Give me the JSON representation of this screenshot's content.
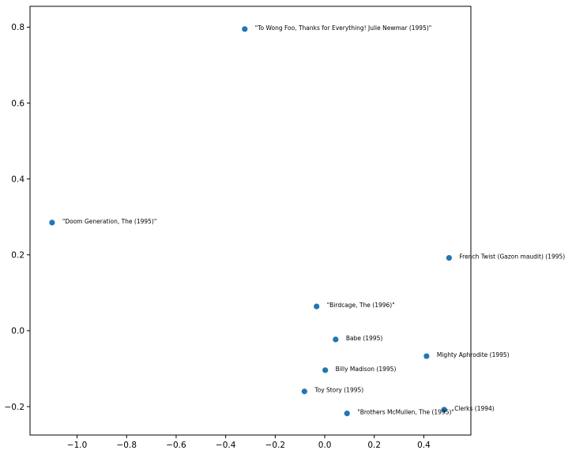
{
  "chart_data": {
    "type": "scatter",
    "title": "",
    "xlabel": "",
    "ylabel": "",
    "xlim": [
      -1.19,
      0.59
    ],
    "ylim": [
      -0.275,
      0.855
    ],
    "grid": false,
    "marker_color": "#1f77b4",
    "x_ticks": [
      {
        "value": -1.0,
        "label": "−1.0"
      },
      {
        "value": -0.8,
        "label": "−0.8"
      },
      {
        "value": -0.6,
        "label": "−0.6"
      },
      {
        "value": -0.4,
        "label": "−0.4"
      },
      {
        "value": -0.2,
        "label": "−0.2"
      },
      {
        "value": 0.0,
        "label": "0.0"
      },
      {
        "value": 0.2,
        "label": "0.2"
      },
      {
        "value": 0.4,
        "label": "0.4"
      }
    ],
    "y_ticks": [
      {
        "value": -0.2,
        "label": "−0.2"
      },
      {
        "value": 0.0,
        "label": "0.0"
      },
      {
        "value": 0.2,
        "label": "0.2"
      },
      {
        "value": 0.4,
        "label": "0.4"
      },
      {
        "value": 0.6,
        "label": "0.6"
      },
      {
        "value": 0.8,
        "label": "0.8"
      }
    ],
    "points": [
      {
        "x": -0.323,
        "y": 0.795,
        "label": "\"To Wong Foo, Thanks for Everything! Julie Newmar (1995)\""
      },
      {
        "x": -1.101,
        "y": 0.285,
        "label": "\"Doom Generation, The (1995)\""
      },
      {
        "x": 0.502,
        "y": 0.192,
        "label": "French Twist (Gazon maudit) (1995)"
      },
      {
        "x": -0.033,
        "y": 0.064,
        "label": "\"Birdcage, The (1996)\""
      },
      {
        "x": 0.044,
        "y": -0.023,
        "label": "Babe (1995)"
      },
      {
        "x": 0.411,
        "y": -0.067,
        "label": "Mighty Aphrodite (1995)"
      },
      {
        "x": 0.002,
        "y": -0.104,
        "label": "Billy Madison (1995)"
      },
      {
        "x": -0.082,
        "y": -0.16,
        "label": "Toy Story (1995)"
      },
      {
        "x": 0.482,
        "y": -0.208,
        "label": "Clerks (1994)"
      },
      {
        "x": 0.09,
        "y": -0.218,
        "label": "\"Brothers McMullen, The (1995)\""
      }
    ]
  }
}
